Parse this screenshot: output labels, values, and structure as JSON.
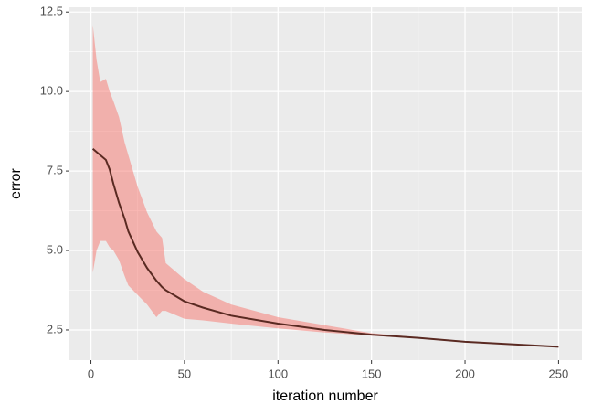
{
  "chart_data": {
    "type": "ribbon-line",
    "xlabel": "iteration number",
    "ylabel": "error",
    "x": [
      1,
      3,
      5,
      8,
      10,
      12,
      15,
      18,
      20,
      25,
      30,
      35,
      38,
      40,
      50,
      60,
      75,
      100,
      125,
      150,
      175,
      200,
      225,
      250
    ],
    "values": [
      8.2,
      8.1,
      8.0,
      7.85,
      7.55,
      7.1,
      6.5,
      6.0,
      5.6,
      4.95,
      4.45,
      4.05,
      3.85,
      3.75,
      3.4,
      3.2,
      2.95,
      2.7,
      2.5,
      2.35,
      2.25,
      2.13,
      2.05,
      1.97
    ],
    "upper": [
      12.1,
      11.0,
      10.3,
      10.4,
      10.0,
      9.7,
      9.2,
      8.4,
      8.0,
      7.0,
      6.2,
      5.6,
      5.4,
      4.6,
      4.1,
      3.7,
      3.3,
      2.9,
      2.65,
      2.4,
      2.27,
      2.15,
      2.06,
      1.98
    ],
    "lower": [
      4.3,
      5.0,
      5.3,
      5.3,
      5.1,
      5.0,
      4.7,
      4.2,
      3.9,
      3.6,
      3.3,
      2.9,
      3.1,
      3.1,
      2.85,
      2.8,
      2.7,
      2.55,
      2.42,
      2.32,
      2.23,
      2.11,
      2.04,
      1.96
    ],
    "color": "#5a2a22",
    "band_color": "#f8766d",
    "xlim": [
      -11.5,
      262.5
    ],
    "ylim": [
      1.55,
      12.65
    ],
    "xticks": [
      0,
      50,
      100,
      150,
      200,
      250
    ],
    "yticks": [
      2.5,
      {
        "value": 5,
        "label": "5.0"
      },
      7.5,
      {
        "value": 10,
        "label": "10.0"
      },
      12.5
    ],
    "grid": true,
    "minor_grid": true
  }
}
